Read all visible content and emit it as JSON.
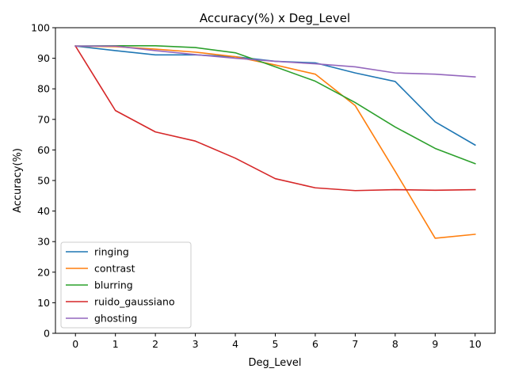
{
  "chart_data": {
    "type": "line",
    "title": "Accuracy(%) x Deg_Level",
    "xlabel": "Deg_Level",
    "ylabel": "Accuracy(%)",
    "x": [
      0,
      1,
      2,
      3,
      4,
      5,
      6,
      7,
      8,
      9,
      10
    ],
    "xlim": [
      -0.5,
      10.5
    ],
    "ylim": [
      0,
      100
    ],
    "xticks": [
      "0",
      "1",
      "2",
      "3",
      "4",
      "5",
      "6",
      "7",
      "8",
      "9",
      "10"
    ],
    "yticks": [
      "0",
      "10",
      "20",
      "30",
      "40",
      "50",
      "60",
      "70",
      "80",
      "90",
      "100"
    ],
    "grid": false,
    "legend_position": "lower-left",
    "series": [
      {
        "name": "ringing",
        "color": "#1f77b4",
        "values": [
          94.0,
          92.5,
          91.1,
          91.1,
          90.5,
          89.0,
          88.5,
          85.2,
          82.4,
          69.2,
          61.6
        ]
      },
      {
        "name": "contrast",
        "color": "#ff7f0e",
        "values": [
          94.0,
          93.8,
          93.0,
          92.0,
          90.5,
          87.8,
          84.8,
          74.5,
          53.0,
          31.1,
          32.4
        ]
      },
      {
        "name": "blurring",
        "color": "#2ca02c",
        "values": [
          94.0,
          94.1,
          94.1,
          93.5,
          91.8,
          87.2,
          82.5,
          75.5,
          67.5,
          60.5,
          55.5
        ]
      },
      {
        "name": "ruido_gaussiano",
        "color": "#d62728",
        "values": [
          94.0,
          72.9,
          65.9,
          62.9,
          57.3,
          50.6,
          47.6,
          46.7,
          47.0,
          46.8,
          47.0
        ]
      },
      {
        "name": "ghosting",
        "color": "#9467bd",
        "values": [
          94.0,
          94.0,
          92.5,
          91.2,
          90.0,
          89.0,
          88.2,
          87.2,
          85.2,
          84.8,
          83.9
        ]
      }
    ]
  }
}
